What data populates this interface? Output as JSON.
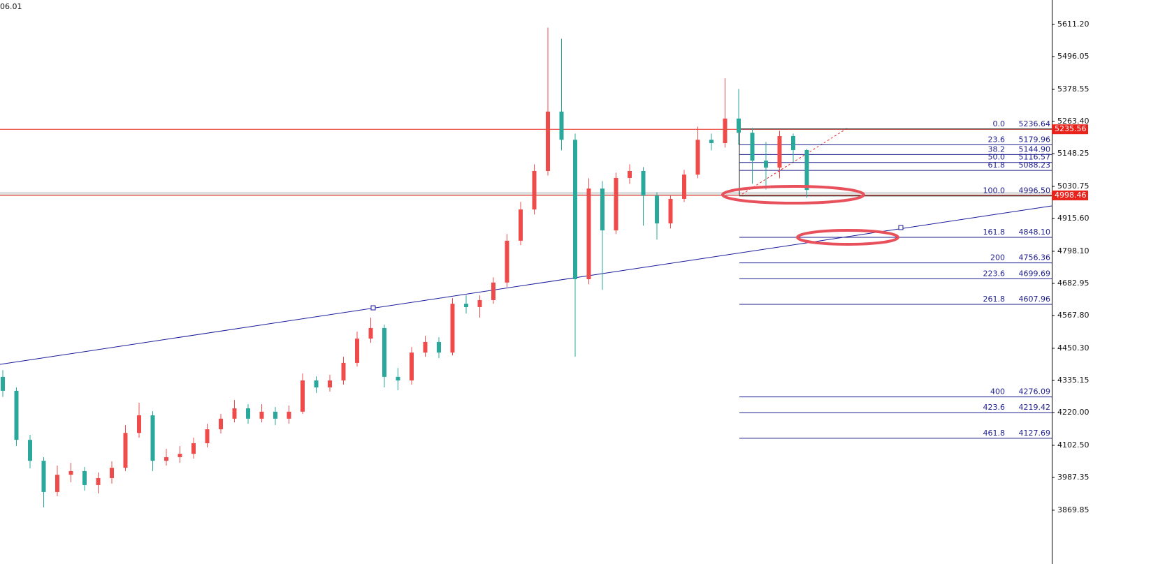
{
  "chart_data": {
    "type": "candlestick",
    "label": "06.01",
    "ylim": [
      3677,
      5699
    ],
    "yticks": [
      {
        "value": 5611.2,
        "label": "5611.20"
      },
      5496.05,
      5378.55,
      {
        "value": 5263.4,
        "label": "5263.40"
      },
      5148.25,
      5030.75,
      {
        "value": 4915.6,
        "label": "4915.60"
      },
      {
        "value": 4798.1,
        "label": "4798.10"
      },
      4682.95,
      {
        "value": 4567.8,
        "label": "4567.80"
      },
      {
        "value": 4450.3,
        "label": "4450.30"
      },
      4335.15,
      {
        "value": 4220,
        "label": "4220.00"
      },
      {
        "value": 4102.5,
        "label": "4102.50"
      },
      3987.35,
      3869.85
    ],
    "up_color": "#ef4b4b",
    "down_color": "#2aa89c",
    "open": [
      4348,
      4298,
      4122,
      4047,
      3935,
      3997,
      4010,
      3960,
      3985,
      4022,
      4147,
      4210,
      4047,
      4060,
      4072,
      4110,
      4160,
      4198,
      4235,
      4198,
      4223,
      4198,
      4223,
      4335,
      4310,
      4335,
      4398,
      4485,
      4523,
      4348,
      4335,
      4435,
      4473,
      4435,
      4610,
      4598,
      4623,
      4686,
      4836,
      4948,
      5086,
      5299,
      5198,
      4698,
      5023,
      4873,
      5061,
      5086,
      4998,
      4898,
      4986,
      5073,
      5198,
      5186,
      5274,
      5223,
      5123,
      5098,
      5211,
      5161
    ],
    "high": [
      4372,
      4310,
      4140,
      4060,
      4030,
      4040,
      4025,
      4005,
      4045,
      4175,
      4255,
      4225,
      4090,
      4100,
      4130,
      4180,
      4215,
      4265,
      4250,
      4250,
      4240,
      4245,
      4360,
      4350,
      4355,
      4420,
      4510,
      4560,
      4535,
      4380,
      4455,
      4495,
      4490,
      4630,
      4640,
      4640,
      4705,
      4860,
      4975,
      5110,
      5600,
      5560,
      5220,
      5060,
      5050,
      5080,
      5110,
      5100,
      5010,
      5000,
      5090,
      5245,
      5220,
      5418,
      5380,
      5240,
      5190,
      5230,
      5220,
      5165
    ],
    "low": [
      4276,
      4100,
      4020,
      3880,
      3920,
      3970,
      3940,
      3930,
      3965,
      4010,
      4130,
      4010,
      4030,
      4040,
      4055,
      4095,
      4145,
      4185,
      4180,
      4185,
      4175,
      4180,
      4215,
      4290,
      4295,
      4320,
      4385,
      4470,
      4310,
      4300,
      4320,
      4420,
      4415,
      4425,
      4575,
      4560,
      4610,
      4670,
      4820,
      4930,
      5070,
      5160,
      4420,
      4680,
      4660,
      4860,
      5040,
      4890,
      4840,
      4880,
      4975,
      5060,
      5160,
      5170,
      5180,
      5040,
      5020,
      5060,
      5120,
      4990
    ],
    "close": [
      4298,
      4122,
      4047,
      3935,
      3997,
      4010,
      3960,
      3985,
      4022,
      4147,
      4210,
      4047,
      4060,
      4072,
      4110,
      4160,
      4198,
      4235,
      4198,
      4223,
      4198,
      4223,
      4335,
      4310,
      4335,
      4398,
      4485,
      4523,
      4348,
      4335,
      4435,
      4473,
      4435,
      4610,
      4598,
      4623,
      4686,
      4836,
      4948,
      5086,
      5299,
      5198,
      4698,
      5023,
      4873,
      5061,
      5086,
      4998,
      4898,
      4986,
      5073,
      5198,
      5186,
      5274,
      5223,
      5123,
      5098,
      5211,
      5161,
      5018
    ],
    "fib": {
      "color": "#1c1c8c",
      "levels": [
        {
          "value": 0,
          "label": "0.0"
        },
        23.6,
        38.2,
        {
          "value": 50,
          "label": "50.0"
        },
        61.8,
        {
          "value": 100,
          "label": "100.0"
        },
        161.8,
        200,
        223.6,
        261.8,
        400,
        423.6,
        461.8
      ],
      "prices": [
        5236.64,
        5179.96,
        {
          "value": 5144.9,
          "label": "5144.90"
        },
        5116.57,
        5088.23,
        {
          "value": 4996.5,
          "label": "4996.50"
        },
        {
          "value": 4848.1,
          "label": "4848.10"
        },
        4756.36,
        4699.69,
        4607.96,
        4276.09,
        4219.42,
        4127.69
      ]
    },
    "price_lines": {
      "color": "#e8231c",
      "values": [
        5235.56,
        4998.46
      ]
    }
  }
}
